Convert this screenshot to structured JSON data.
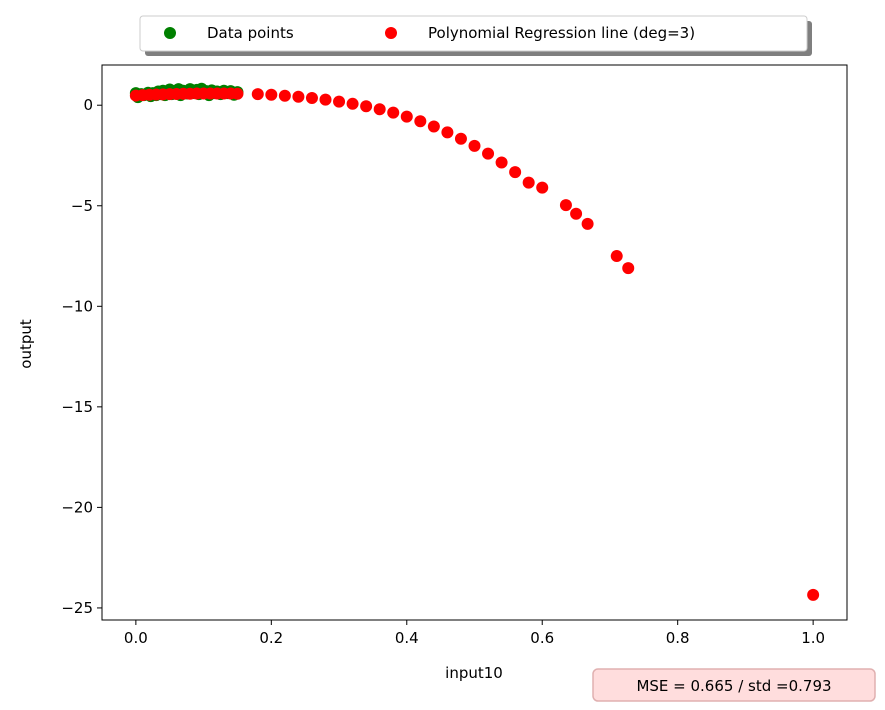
{
  "chart_data": {
    "type": "scatter",
    "xlabel": "input10",
    "ylabel": "output",
    "xlim": [
      -0.05,
      1.05
    ],
    "ylim": [
      -25.6,
      2.0
    ],
    "xticks": [
      0.0,
      0.2,
      0.4,
      0.6,
      0.8,
      1.0
    ],
    "xtick_labels": [
      "0.0",
      "0.2",
      "0.4",
      "0.6",
      "0.8",
      "1.0"
    ],
    "yticks": [
      0,
      -5,
      -10,
      -15,
      -20,
      -25
    ],
    "ytick_labels": [
      "0",
      "−5",
      "−10",
      "−15",
      "−20",
      "−25"
    ],
    "grid": false,
    "legend_placement": "top-center, above plot, 2 columns, shadowed",
    "colors": {
      "data_points": "#008000",
      "regression": "#ff0000",
      "mse_box_bg": "#ffdddd",
      "mse_box_border": "#e8a8a8"
    },
    "series": [
      {
        "name": "Data points",
        "marker": "circle",
        "x": [
          0.0,
          0.003,
          0.008,
          0.012,
          0.018,
          0.022,
          0.025,
          0.03,
          0.033,
          0.037,
          0.04,
          0.043,
          0.046,
          0.05,
          0.053,
          0.056,
          0.06,
          0.063,
          0.066,
          0.07,
          0.073,
          0.076,
          0.08,
          0.083,
          0.086,
          0.09,
          0.093,
          0.097,
          0.1,
          0.104,
          0.108,
          0.112,
          0.116,
          0.12,
          0.125,
          0.13,
          0.135,
          0.14,
          0.145,
          0.15
        ],
        "y": [
          0.6,
          0.4,
          0.55,
          0.5,
          0.62,
          0.45,
          0.6,
          0.5,
          0.68,
          0.55,
          0.72,
          0.5,
          0.65,
          0.78,
          0.55,
          0.7,
          0.62,
          0.8,
          0.5,
          0.72,
          0.66,
          0.58,
          0.8,
          0.7,
          0.6,
          0.76,
          0.55,
          0.82,
          0.62,
          0.7,
          0.5,
          0.74,
          0.6,
          0.68,
          0.55,
          0.72,
          0.6,
          0.7,
          0.52,
          0.65
        ]
      },
      {
        "name": "Polynomial Regression line (deg=3)",
        "marker": "circle",
        "x": [
          0.0,
          0.01,
          0.02,
          0.03,
          0.04,
          0.05,
          0.06,
          0.07,
          0.08,
          0.09,
          0.1,
          0.11,
          0.12,
          0.13,
          0.14,
          0.15,
          0.18,
          0.2,
          0.22,
          0.24,
          0.26,
          0.28,
          0.3,
          0.32,
          0.34,
          0.36,
          0.38,
          0.4,
          0.42,
          0.44,
          0.46,
          0.48,
          0.5,
          0.52,
          0.54,
          0.56,
          0.58,
          0.6,
          0.635,
          0.65,
          0.667,
          0.71,
          0.727,
          1.0
        ],
        "y": [
          0.48,
          0.5,
          0.52,
          0.53,
          0.54,
          0.55,
          0.56,
          0.57,
          0.57,
          0.58,
          0.58,
          0.58,
          0.58,
          0.58,
          0.58,
          0.57,
          0.55,
          0.52,
          0.47,
          0.42,
          0.36,
          0.28,
          0.18,
          0.07,
          -0.05,
          -0.2,
          -0.37,
          -0.57,
          -0.8,
          -1.06,
          -1.35,
          -1.67,
          -2.02,
          -2.41,
          -2.85,
          -3.33,
          -3.85,
          -4.1,
          -4.97,
          -5.4,
          -5.9,
          -7.5,
          -8.1,
          -24.35
        ]
      }
    ],
    "annotation": "MSE = 0.665 / std =0.793"
  }
}
